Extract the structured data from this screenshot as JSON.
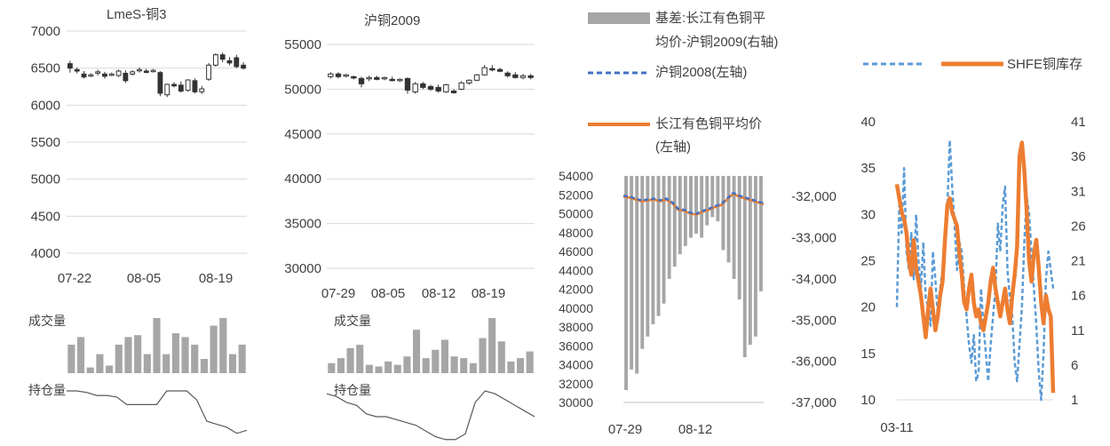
{
  "chart_data": [
    {
      "type": "candlestick",
      "title": "LmeS-铜3",
      "yticks": [
        "7000",
        "6500",
        "6000",
        "5500",
        "5000",
        "4500",
        "4000"
      ],
      "ylim": [
        4000,
        7000
      ],
      "xticks": [
        "07-22",
        "08-05",
        "08-19"
      ],
      "grid": true,
      "ohlc": [
        [
          6560,
          6600,
          6440,
          6500
        ],
        [
          6480,
          6510,
          6430,
          6460
        ],
        [
          6420,
          6460,
          6360,
          6380
        ],
        [
          6400,
          6430,
          6380,
          6410
        ],
        [
          6440,
          6480,
          6400,
          6450
        ],
        [
          6420,
          6450,
          6360,
          6390
        ],
        [
          6410,
          6440,
          6390,
          6420
        ],
        [
          6400,
          6480,
          6380,
          6460
        ],
        [
          6430,
          6470,
          6300,
          6330
        ],
        [
          6420,
          6470,
          6400,
          6450
        ],
        [
          6470,
          6510,
          6440,
          6480
        ],
        [
          6460,
          6490,
          6430,
          6450
        ],
        [
          6460,
          6490,
          6440,
          6470
        ],
        [
          6440,
          6460,
          6120,
          6160
        ],
        [
          6140,
          6290,
          6110,
          6280
        ],
        [
          6280,
          6310,
          6240,
          6260
        ],
        [
          6270,
          6320,
          6170,
          6190
        ],
        [
          6200,
          6350,
          6180,
          6340
        ],
        [
          6330,
          6360,
          6160,
          6180
        ],
        [
          6180,
          6260,
          6150,
          6220
        ],
        [
          6350,
          6570,
          6330,
          6540
        ],
        [
          6540,
          6700,
          6520,
          6680
        ],
        [
          6680,
          6710,
          6580,
          6620
        ],
        [
          6600,
          6650,
          6540,
          6570
        ],
        [
          6640,
          6680,
          6500,
          6520
        ],
        [
          6540,
          6580,
          6480,
          6500
        ]
      ],
      "volume_label": "成交量",
      "volume": [
        30,
        38,
        6,
        20,
        8,
        30,
        38,
        40,
        20,
        58,
        20,
        42,
        38,
        30,
        15,
        50,
        58,
        20,
        30
      ],
      "oi_label": "持仓量",
      "open_interest": [
        34,
        34,
        33,
        31,
        31,
        30,
        25,
        25,
        25,
        25,
        34,
        34,
        34,
        28,
        14,
        12,
        10,
        6,
        8
      ]
    },
    {
      "type": "candlestick",
      "title": "沪铜2009",
      "yticks": [
        "55000",
        "50000",
        "45000",
        "40000",
        "35000",
        "30000"
      ],
      "ylim": [
        30000,
        55000
      ],
      "xticks": [
        "07-29",
        "08-05",
        "08-12",
        "08-19"
      ],
      "grid": true,
      "ohlc": [
        [
          51400,
          51900,
          51200,
          51700
        ],
        [
          51700,
          51900,
          51200,
          51400
        ],
        [
          51500,
          51700,
          51300,
          51600
        ],
        [
          51400,
          51500,
          51100,
          51300
        ],
        [
          51200,
          51400,
          50200,
          50600
        ],
        [
          51200,
          51500,
          50900,
          51300
        ],
        [
          51300,
          51500,
          51000,
          51100
        ],
        [
          51200,
          51400,
          51000,
          51300
        ],
        [
          51100,
          51400,
          50900,
          51000
        ],
        [
          51000,
          51200,
          50800,
          51100
        ],
        [
          51200,
          51300,
          49500,
          49900
        ],
        [
          49700,
          50800,
          49500,
          50600
        ],
        [
          50600,
          50800,
          50000,
          50200
        ],
        [
          50300,
          50500,
          49800,
          50000
        ],
        [
          50200,
          50500,
          49600,
          49800
        ],
        [
          49700,
          50600,
          49600,
          50500
        ],
        [
          49800,
          50000,
          49500,
          49600
        ],
        [
          50000,
          50900,
          49900,
          50700
        ],
        [
          50700,
          51100,
          50500,
          51000
        ],
        [
          51000,
          51700,
          50900,
          51600
        ],
        [
          51600,
          52700,
          51500,
          52400
        ],
        [
          52300,
          52700,
          52000,
          52200
        ],
        [
          52200,
          52400,
          51900,
          52000
        ],
        [
          51800,
          52000,
          51300,
          51500
        ],
        [
          51600,
          51900,
          51200,
          51300
        ],
        [
          51300,
          51700,
          51100,
          51500
        ],
        [
          51500,
          51700,
          51100,
          51300
        ]
      ],
      "volume_label": "成交量",
      "volume": [
        12,
        18,
        30,
        34,
        10,
        8,
        14,
        10,
        20,
        52,
        18,
        28,
        40,
        20,
        18,
        12,
        42,
        66,
        38,
        14,
        18,
        26
      ],
      "oi_label": "持仓量",
      "open_interest": [
        34,
        32,
        28,
        26,
        20,
        18,
        18,
        16,
        14,
        12,
        8,
        4,
        2,
        2,
        6,
        28,
        36,
        34,
        30,
        26,
        22,
        18
      ]
    },
    {
      "type": "bar+line",
      "legend": [
        "基差:长江有色铜平均价-沪铜2009(右轴)",
        "沪铜2008(左轴)",
        "长江有色铜平均价(左轴)"
      ],
      "yticks_left": [
        "54000",
        "52000",
        "50000",
        "48000",
        "46000",
        "44000",
        "42000",
        "40000",
        "38000",
        "36000",
        "34000",
        "32000",
        "30000"
      ],
      "ylim_left": [
        30000,
        54000
      ],
      "yticks_right": [
        "-32,000",
        "-33,000",
        "-34,000",
        "-35,000",
        "-36,000",
        "-37,000"
      ],
      "ylim_right": [
        -37000,
        -31500
      ],
      "xticks": [
        "07-29",
        "08-12"
      ],
      "basis_bars": [
        -36700,
        -36200,
        -36300,
        -35700,
        -35400,
        -35100,
        -34900,
        -34600,
        -34000,
        -33700,
        -33400,
        -33200,
        -33000,
        -32900,
        -33000,
        -32700,
        -32500,
        -32600,
        -33300,
        -33600,
        -34000,
        -34500,
        -35900,
        -35600,
        -35400,
        -34300
      ],
      "shfe_2008": [
        51900,
        51800,
        51600,
        51400,
        51500,
        51600,
        51400,
        51600,
        51200,
        50500,
        50400,
        50100,
        50000,
        50300,
        50500,
        50800,
        51000,
        51600,
        52200,
        51900,
        51700,
        51500,
        51300,
        51100
      ],
      "changjiang_avg": [
        51800,
        51700,
        51500,
        51300,
        51400,
        51500,
        51300,
        51500,
        51100,
        50400,
        50300,
        50000,
        49900,
        50200,
        50400,
        50700,
        50900,
        51500,
        52100,
        51800,
        51600,
        51400,
        51200,
        51000
      ]
    },
    {
      "type": "line",
      "legend": [
        "",
        "SHFE铜库存"
      ],
      "yticks_left": [
        "40",
        "35",
        "30",
        "25",
        "20",
        "15",
        "10"
      ],
      "ylim_left": [
        10,
        40
      ],
      "yticks_right": [
        "41",
        "36",
        "31",
        "26",
        "21",
        "16",
        "11",
        "6",
        "1"
      ],
      "ylim_right": [
        1,
        41
      ],
      "xticks": [
        "03-11"
      ],
      "series_dashed": [
        20,
        31,
        28,
        35,
        26,
        24,
        28,
        23,
        30,
        25,
        22,
        27,
        21,
        20,
        18,
        26,
        23,
        19,
        22,
        24,
        27,
        31,
        38,
        33,
        29,
        24,
        27,
        26,
        22,
        19,
        16,
        14,
        17,
        12,
        13,
        22,
        18,
        15,
        12,
        16,
        19,
        22,
        29,
        26,
        31,
        33,
        24,
        21,
        19,
        14,
        12,
        16,
        20,
        27,
        32,
        30,
        26,
        22,
        18,
        13,
        10,
        15,
        23,
        26,
        24,
        22
      ],
      "series_solid": [
        32,
        30,
        28,
        27,
        25,
        21,
        19,
        24,
        20,
        18,
        16,
        13,
        10,
        14,
        17,
        14,
        11,
        13,
        16,
        18,
        24,
        29,
        30,
        28,
        27,
        26,
        22,
        19,
        15,
        14,
        17,
        19,
        15,
        13,
        14,
        12,
        11,
        13,
        15,
        18,
        20,
        17,
        15,
        13,
        15,
        17,
        14,
        12,
        16,
        19,
        23,
        36,
        38,
        34,
        28,
        21,
        18,
        22,
        24,
        20,
        15,
        12,
        16,
        14,
        13,
        2
      ]
    }
  ]
}
